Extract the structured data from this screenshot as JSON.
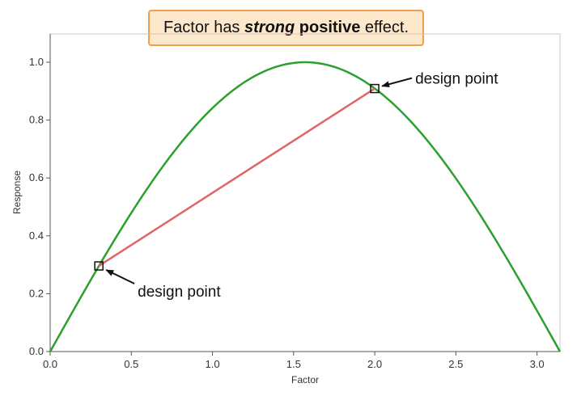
{
  "colors": {
    "curve": "#2ca02c",
    "segment": "#e06666",
    "callout_border": "#f0a048",
    "callout_fill": "#fde8cc",
    "frame": "#c8c8c8"
  },
  "callout": {
    "text_before": "Factor has ",
    "text_emphasis": "strong",
    "text_middle": " ",
    "text_strong": "positive",
    "text_after": " effect."
  },
  "chart_data": {
    "type": "line",
    "xlabel": "Factor",
    "ylabel": "Response",
    "xlim": [
      0,
      3.1416
    ],
    "ylim": [
      0,
      1.0
    ],
    "x_ticks": [
      0.0,
      0.5,
      1.0,
      1.5,
      2.0,
      2.5,
      3.0
    ],
    "x_tick_labels": [
      "0.0",
      "0.5",
      "1.0",
      "1.5",
      "2.0",
      "2.5",
      "3.0"
    ],
    "y_ticks": [
      0.0,
      0.2,
      0.4,
      0.6,
      0.8,
      1.0
    ],
    "y_tick_labels": [
      "0.0",
      "0.2",
      "0.4",
      "0.6",
      "0.8",
      "1.0"
    ],
    "grid": false,
    "series": [
      {
        "role": "curve",
        "function": "sin",
        "x": [
          0.0,
          0.2,
          0.4,
          0.6,
          0.8,
          1.0,
          1.2,
          1.4,
          1.5708,
          1.8,
          2.0,
          2.2,
          2.4,
          2.6,
          2.8,
          3.0,
          3.1416
        ],
        "values": [
          0.0,
          0.199,
          0.389,
          0.565,
          0.717,
          0.841,
          0.932,
          0.985,
          1.0,
          0.974,
          0.909,
          0.808,
          0.675,
          0.516,
          0.335,
          0.141,
          0.0
        ]
      },
      {
        "role": "segment",
        "x": [
          0.3,
          2.0
        ],
        "values": [
          0.296,
          0.909
        ]
      }
    ],
    "design_points": [
      {
        "x": 0.3,
        "y": 0.296,
        "label": "design point"
      },
      {
        "x": 2.0,
        "y": 0.909,
        "label": "design point"
      }
    ]
  }
}
